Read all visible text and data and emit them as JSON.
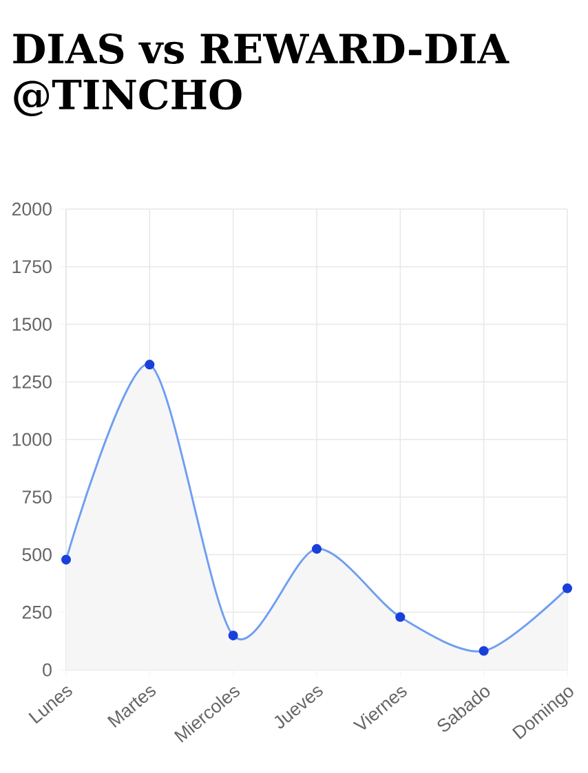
{
  "chart_data": {
    "type": "area",
    "title": "DIAS vs REWARD-DIA @TINCHO",
    "categories": [
      "Lunes",
      "Martes",
      "Miercoles",
      "Jueves",
      "Viernes",
      "Sabado",
      "Domingo"
    ],
    "series": [
      {
        "color": "#6f9ef2",
        "values": [
          478,
          1325,
          149,
          525,
          229,
          82,
          354
        ]
      }
    ],
    "ylim": [
      0,
      2000
    ],
    "yticks": [
      0,
      250,
      500,
      750,
      1000,
      1250,
      1500,
      1750,
      2000
    ],
    "grid": true,
    "marker": "circle"
  }
}
